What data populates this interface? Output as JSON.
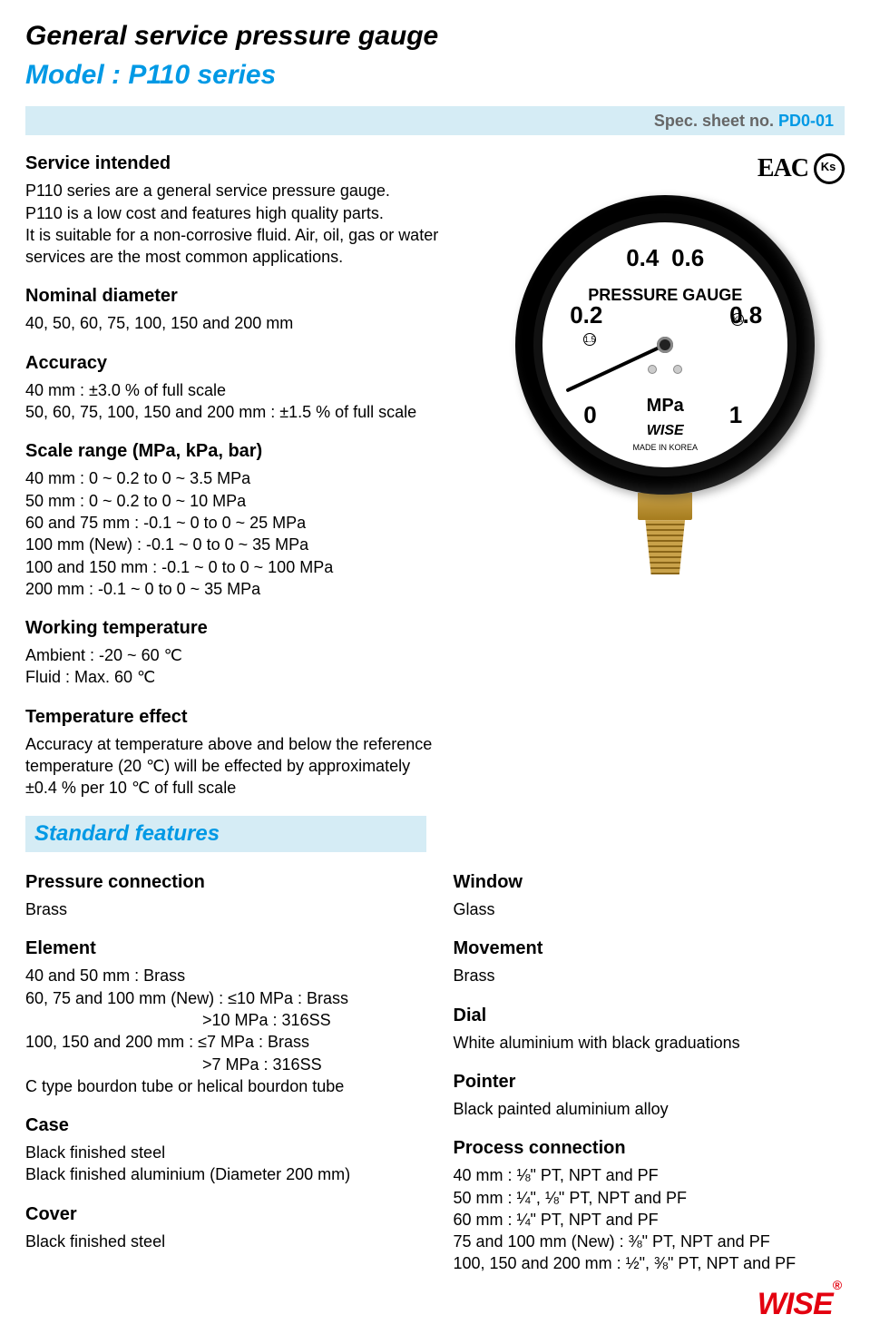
{
  "header": {
    "title": "General service pressure gauge",
    "model": "Model : P110 series",
    "spec_label": "Spec. sheet no. ",
    "spec_num": "PD0-01",
    "title_color": "#000000",
    "model_color": "#0099e5",
    "bar_bg": "#d5ecf5"
  },
  "certifications": {
    "eac": "EAC",
    "ks": "Ks"
  },
  "sections": {
    "service": {
      "heading": "Service intended",
      "lines": [
        "P110 series are a general service pressure gauge.",
        "P110 is a low cost and features high quality parts.",
        "It is suitable for a non-corrosive fluid. Air, oil, gas or water",
        "services are the most common applications."
      ]
    },
    "nominal": {
      "heading": "Nominal diameter",
      "lines": [
        "40, 50, 60, 75, 100, 150 and 200 mm"
      ]
    },
    "accuracy": {
      "heading": "Accuracy",
      "lines": [
        "40 mm : ±3.0 % of full scale",
        "50, 60, 75, 100, 150 and 200 mm : ±1.5 % of full scale"
      ]
    },
    "scale": {
      "heading": "Scale range (MPa, kPa, bar)",
      "lines": [
        "40 mm : 0 ~ 0.2 to 0 ~ 3.5 MPa",
        "50 mm : 0 ~ 0.2 to 0 ~ 10 MPa",
        "60 and 75 mm : -0.1 ~ 0 to 0 ~ 25 MPa",
        "100 mm (New) : -0.1  ~ 0 to 0 ~ 35 MPa",
        "100 and 150 mm : -0.1 ~ 0 to 0 ~ 100 MPa",
        "200 mm : -0.1 ~ 0 to 0 ~ 35 MPa"
      ]
    },
    "temp": {
      "heading": "Working temperature",
      "lines": [
        "Ambient : -20 ~ 60 ℃",
        "Fluid : Max. 60 ℃"
      ]
    },
    "tempeffect": {
      "heading": "Temperature effect",
      "lines": [
        "Accuracy at temperature above and below the reference",
        "temperature (20 ℃) will be effected by approximately",
        "±0.4 % per 10 ℃ of full scale"
      ]
    }
  },
  "features_heading": "Standard features",
  "features_left": {
    "pressure_conn": {
      "heading": "Pressure connection",
      "lines": [
        "Brass"
      ]
    },
    "element": {
      "heading": "Element",
      "lines": [
        "40 and 50 mm : Brass",
        "60, 75 and 100 mm (New) : ≤10 MPa : Brass"
      ],
      "indent1": ">10 MPa : 316SS",
      "lines2": [
        "100, 150 and 200 mm : ≤7 MPa : Brass"
      ],
      "indent2": ">7 MPa : 316SS",
      "lines3": [
        "C type bourdon tube or helical bourdon tube"
      ]
    },
    "case": {
      "heading": "Case",
      "lines": [
        "Black finished steel",
        "Black finished aluminium (Diameter 200 mm)"
      ]
    },
    "cover": {
      "heading": "Cover",
      "lines": [
        "Black finished steel"
      ]
    }
  },
  "features_right": {
    "window": {
      "heading": "Window",
      "lines": [
        "Glass"
      ]
    },
    "movement": {
      "heading": "Movement",
      "lines": [
        "Brass"
      ]
    },
    "dial": {
      "heading": "Dial",
      "lines": [
        "White aluminium with black graduations"
      ]
    },
    "pointer": {
      "heading": "Pointer",
      "lines": [
        "Black painted aluminium alloy"
      ]
    },
    "process": {
      "heading": "Process connection",
      "lines": [
        "40 mm : ⅛\" PT, NPT and PF",
        "50 mm : ¼\", ⅛\" PT, NPT and PF",
        "60 mm : ¼\" PT, NPT and PF",
        "75 and 100 mm (New) : ⅜\" PT, NPT and PF",
        "100, 150 and 200 mm : ½\", ⅜\" PT, NPT and PF"
      ]
    }
  },
  "gauge": {
    "face_label": "PRESSURE GAUGE",
    "unit": "MPa",
    "brand": "WISE",
    "made": "MADE IN KOREA",
    "scale_labels": {
      "v0": "0",
      "v02": "0.2",
      "v04": "0.4",
      "v06": "0.6",
      "v08": "0.8",
      "v1": "1"
    },
    "case_color": "#000000",
    "face_bg": "#ffffff",
    "brass_color": "#c9a24a",
    "needle_angle_deg": -115
  },
  "footer": {
    "brand": "WISE",
    "brand_color": "#e3000f"
  }
}
